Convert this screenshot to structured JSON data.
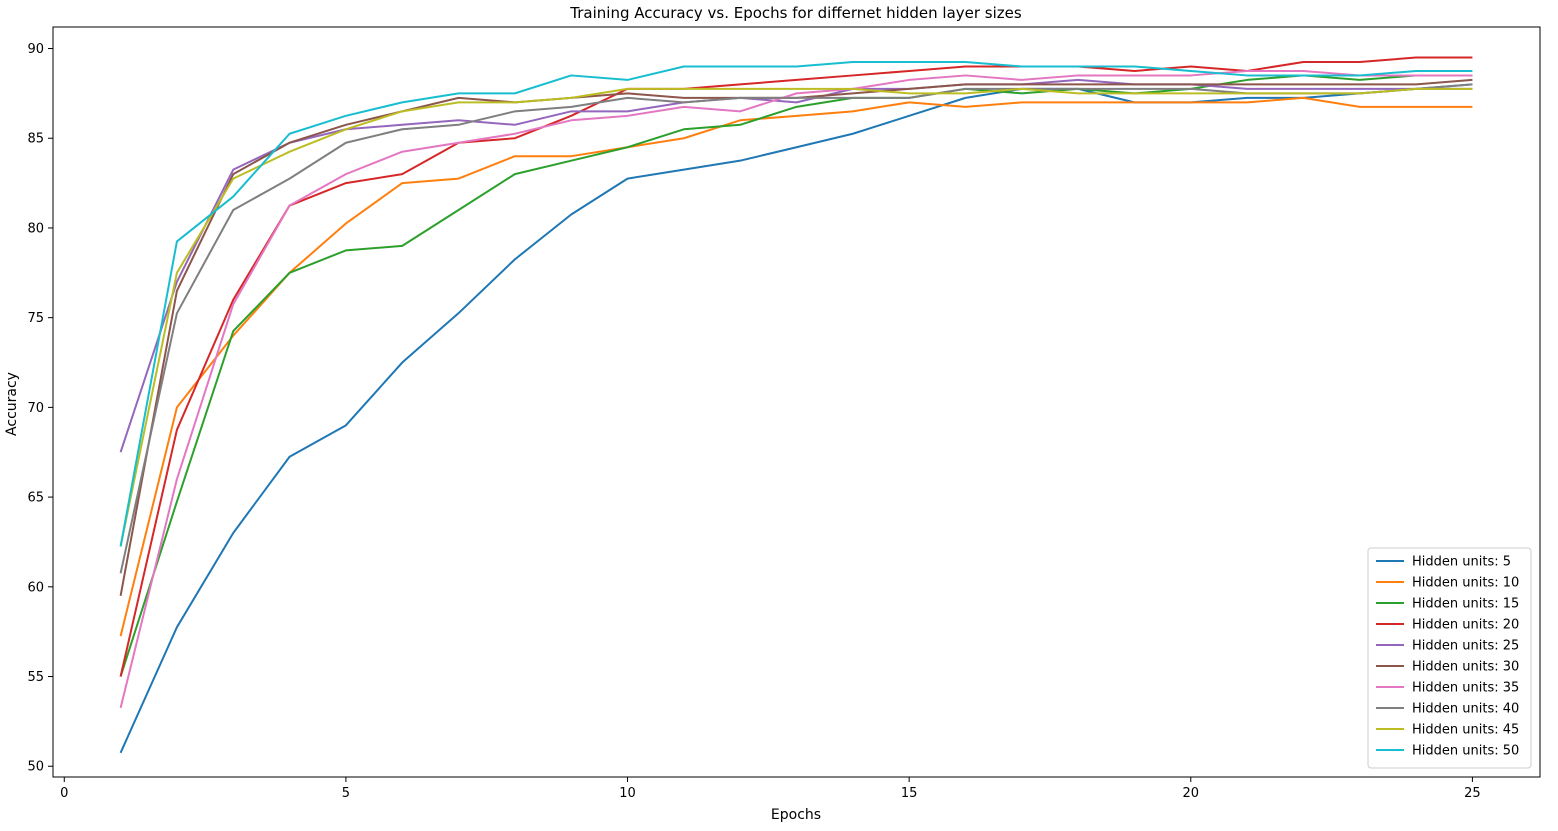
{
  "chart_data": {
    "type": "line",
    "title": "Training Accuracy vs. Epochs for differnet hidden layer sizes",
    "xlabel": "Epochs",
    "ylabel": "Accuracy",
    "xlim": [
      -0.2,
      26.2
    ],
    "ylim": [
      49.4,
      91.2
    ],
    "xticks": [
      0,
      5,
      10,
      15,
      20,
      25
    ],
    "yticks": [
      50,
      55,
      60,
      65,
      70,
      75,
      80,
      85,
      90
    ],
    "grid": false,
    "legend_position": "lower right",
    "x": [
      1,
      2,
      3,
      4,
      5,
      6,
      7,
      8,
      9,
      10,
      11,
      12,
      13,
      14,
      15,
      16,
      17,
      18,
      19,
      20,
      21,
      22,
      23,
      24,
      25
    ],
    "series": [
      {
        "name": "Hidden units: 5",
        "color": "#1f77b4",
        "values": [
          50.75,
          57.75,
          63.0,
          67.25,
          69.0,
          72.5,
          75.25,
          78.25,
          80.75,
          82.75,
          83.25,
          83.75,
          84.5,
          85.25,
          86.25,
          87.25,
          87.75,
          87.75,
          87.0,
          87.0,
          87.25,
          87.25,
          87.5,
          87.75,
          88.0
        ]
      },
      {
        "name": "Hidden units: 10",
        "color": "#ff7f0e",
        "values": [
          57.25,
          70.0,
          74.0,
          77.5,
          80.25,
          82.5,
          82.75,
          84.0,
          84.0,
          84.5,
          85.0,
          86.0,
          86.25,
          86.5,
          87.0,
          86.75,
          87.0,
          87.0,
          87.0,
          87.0,
          87.0,
          87.25,
          86.75,
          86.75,
          86.75
        ]
      },
      {
        "name": "Hidden units: 15",
        "color": "#2ca02c",
        "values": [
          55.0,
          64.75,
          74.25,
          77.5,
          78.75,
          79.0,
          81.0,
          83.0,
          83.75,
          84.5,
          85.5,
          85.75,
          86.75,
          87.25,
          87.25,
          87.75,
          87.5,
          87.75,
          87.5,
          87.75,
          88.25,
          88.5,
          88.25,
          88.5,
          88.5
        ]
      },
      {
        "name": "Hidden units: 20",
        "color": "#d62728",
        "values": [
          55.0,
          68.75,
          76.0,
          81.25,
          82.5,
          83.0,
          84.75,
          85.0,
          86.25,
          87.75,
          87.75,
          88.0,
          88.25,
          88.5,
          88.75,
          89.0,
          89.0,
          89.0,
          88.75,
          89.0,
          88.75,
          89.25,
          89.25,
          89.5,
          89.5
        ]
      },
      {
        "name": "Hidden units: 25",
        "color": "#9467bd",
        "values": [
          67.5,
          77.0,
          83.25,
          84.75,
          85.5,
          85.75,
          86.0,
          85.75,
          86.5,
          86.5,
          87.0,
          87.25,
          87.0,
          87.75,
          87.75,
          88.0,
          88.0,
          88.25,
          88.0,
          88.0,
          87.75,
          87.75,
          87.75,
          87.75,
          87.75
        ]
      },
      {
        "name": "Hidden units: 30",
        "color": "#8c564b",
        "values": [
          59.5,
          76.5,
          83.0,
          84.75,
          85.75,
          86.5,
          87.25,
          87.0,
          87.25,
          87.5,
          87.25,
          87.25,
          87.25,
          87.5,
          87.75,
          88.0,
          88.0,
          88.0,
          88.0,
          88.0,
          88.0,
          88.0,
          88.0,
          88.0,
          88.25
        ]
      },
      {
        "name": "Hidden units: 35",
        "color": "#e377c2",
        "values": [
          53.25,
          66.0,
          75.75,
          81.25,
          83.0,
          84.25,
          84.75,
          85.25,
          86.0,
          86.25,
          86.75,
          86.5,
          87.5,
          87.75,
          88.25,
          88.5,
          88.25,
          88.5,
          88.5,
          88.5,
          88.75,
          88.75,
          88.5,
          88.5,
          88.5
        ]
      },
      {
        "name": "Hidden units: 40",
        "color": "#7f7f7f",
        "values": [
          60.75,
          75.25,
          81.0,
          82.75,
          84.75,
          85.5,
          85.75,
          86.5,
          86.75,
          87.25,
          87.0,
          87.25,
          87.25,
          87.25,
          87.25,
          87.75,
          87.75,
          87.75,
          87.75,
          87.75,
          87.5,
          87.5,
          87.5,
          87.75,
          88.0
        ]
      },
      {
        "name": "Hidden units: 45",
        "color": "#bcbd22",
        "values": [
          62.25,
          77.5,
          82.75,
          84.25,
          85.5,
          86.5,
          87.0,
          87.0,
          87.25,
          87.75,
          87.75,
          87.75,
          87.75,
          87.75,
          87.5,
          87.5,
          87.75,
          87.5,
          87.5,
          87.5,
          87.5,
          87.5,
          87.5,
          87.75,
          87.75
        ]
      },
      {
        "name": "Hidden units: 50",
        "color": "#17becf",
        "values": [
          62.25,
          79.25,
          81.75,
          85.25,
          86.25,
          87.0,
          87.5,
          87.5,
          88.5,
          88.25,
          89.0,
          89.0,
          89.0,
          89.25,
          89.25,
          89.25,
          89.0,
          89.0,
          89.0,
          88.75,
          88.5,
          88.5,
          88.5,
          88.75,
          88.75
        ]
      }
    ]
  }
}
